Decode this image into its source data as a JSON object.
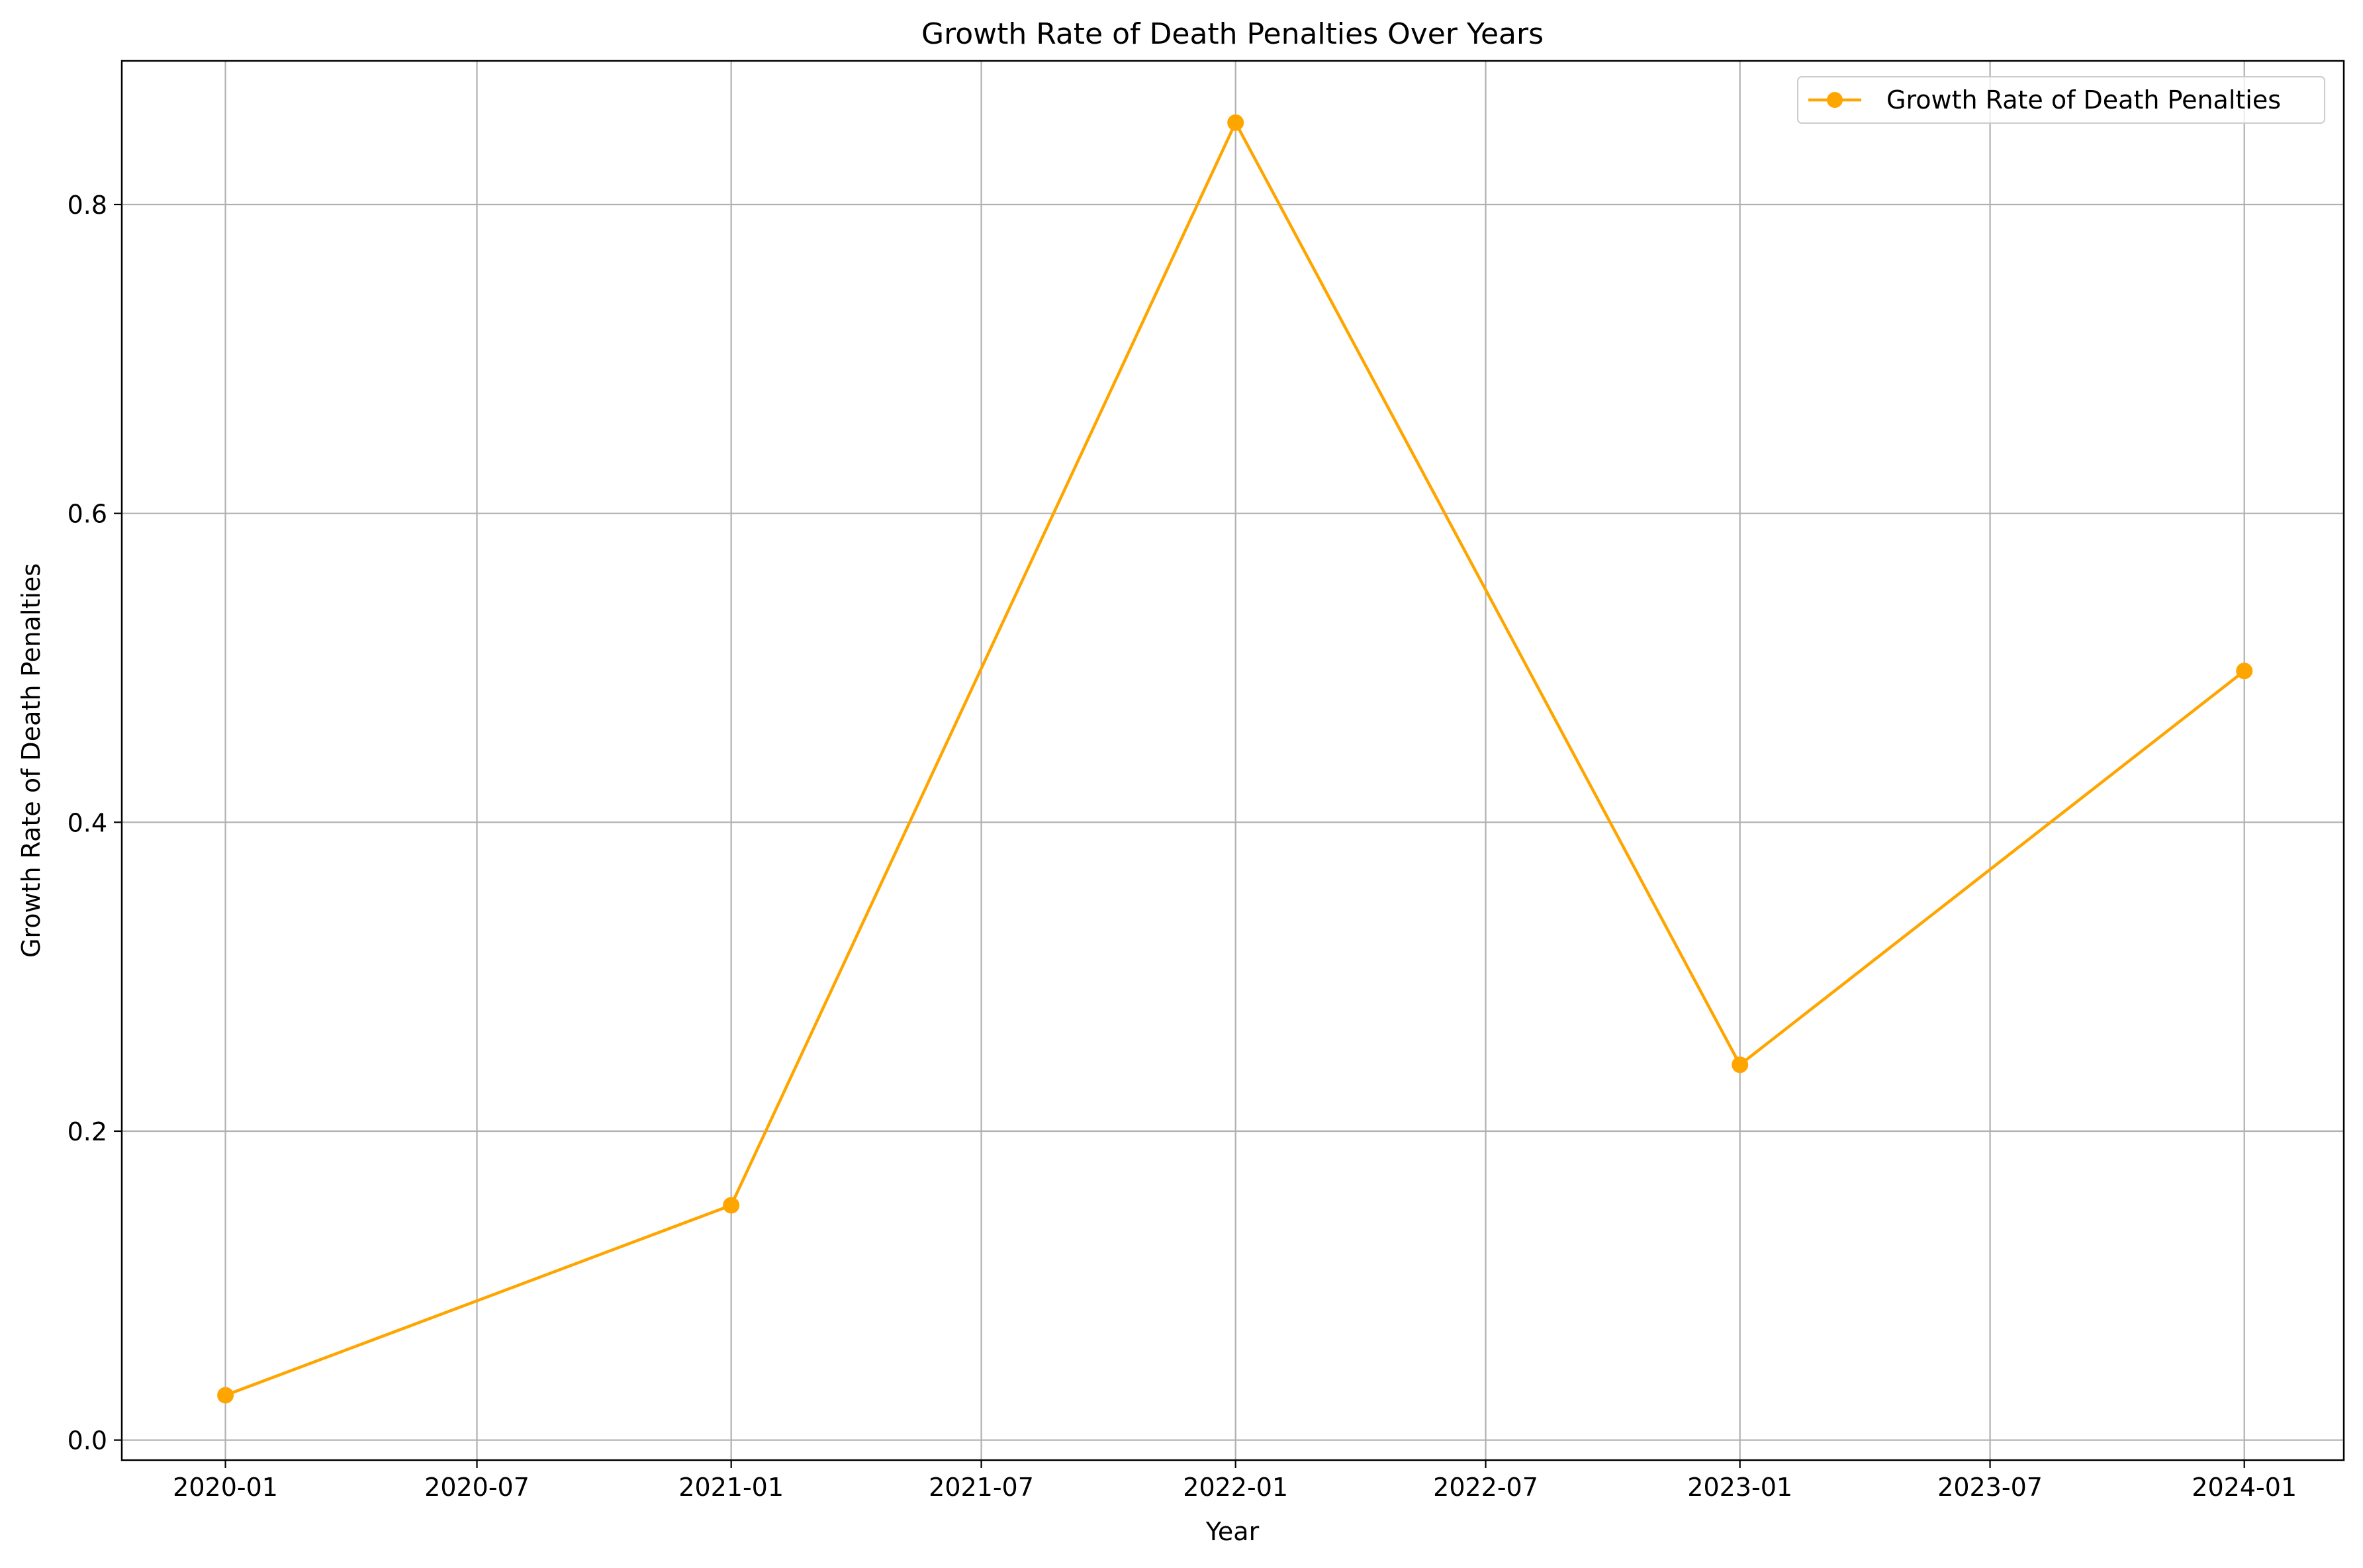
{
  "chart_data": {
    "type": "line",
    "title": "Growth Rate of Death Penalties Over Years",
    "xlabel": "Year",
    "ylabel": "Growth Rate of Death Penalties",
    "x_tick_labels": [
      "2020-01",
      "2020-07",
      "2021-01",
      "2021-07",
      "2022-01",
      "2022-07",
      "2023-01",
      "2023-07",
      "2024-01"
    ],
    "y_tick_labels": [
      "0.0",
      "0.2",
      "0.4",
      "0.6",
      "0.8"
    ],
    "y_ticks": [
      0.0,
      0.2,
      0.4,
      0.6,
      0.8
    ],
    "ylim": [
      -0.013,
      0.893
    ],
    "xlim": [
      "2019-10-18",
      "2024-03-13"
    ],
    "grid": true,
    "legend_position": "upper right",
    "series": [
      {
        "name": "Growth Rate of Death Penalties",
        "color": "#ffa500",
        "marker": "circle",
        "x": [
          "2020-01-01",
          "2021-01-01",
          "2022-01-01",
          "2023-01-01",
          "2024-01-01"
        ],
        "values": [
          0.029,
          0.152,
          0.853,
          0.243,
          0.498
        ]
      }
    ]
  }
}
